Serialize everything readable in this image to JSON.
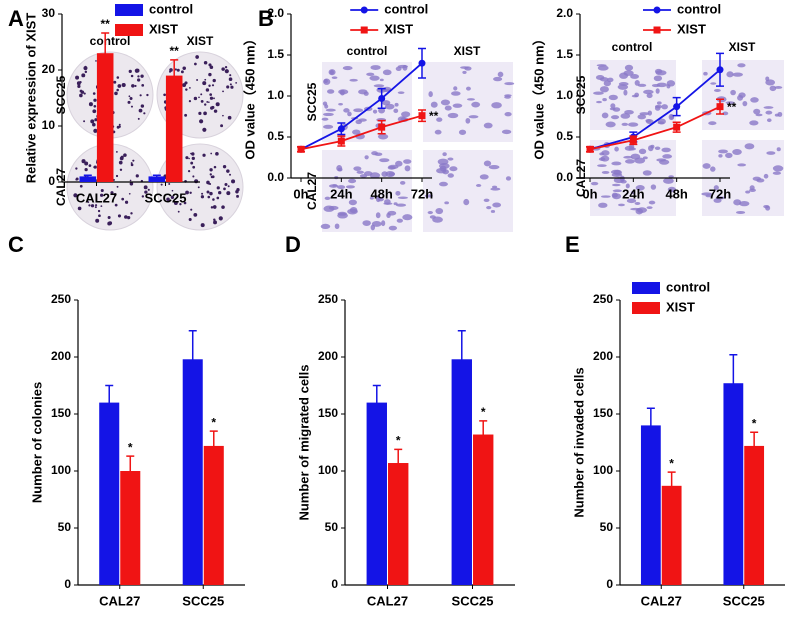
{
  "panel_labels": [
    "A",
    "B",
    "C",
    "D",
    "E"
  ],
  "image_grids": [
    {
      "columns": [
        "control",
        "XIST"
      ],
      "rows": [
        "SCC25",
        "CAL27"
      ]
    },
    {
      "columns": [
        "control",
        "XIST"
      ],
      "rows": [
        "SCC25",
        "CAL27"
      ]
    },
    {
      "columns": [
        "control",
        "XIST"
      ],
      "rows": [
        "SCC25",
        "CAL27"
      ]
    }
  ],
  "chart_data": [
    {
      "type": "bar",
      "ylabel": "Relative expression of XIST",
      "categories": [
        "CAL27",
        "SCC25"
      ],
      "ylim": [
        0,
        30
      ],
      "yticks": [
        0,
        10,
        20,
        30
      ],
      "legend": "upper right",
      "series": [
        {
          "name": "control",
          "color": "#1414e6",
          "values": [
            1,
            1
          ],
          "errors": [
            0.2,
            0.2
          ],
          "significance": [
            null,
            null
          ]
        },
        {
          "name": "XIST",
          "color": "#f01414",
          "values": [
            23,
            19
          ],
          "errors": [
            3.6,
            2.8
          ],
          "significance": [
            "**",
            "**"
          ]
        }
      ]
    },
    {
      "type": "line",
      "ylabel": "OD value（450 nm）",
      "categories": [
        "0h",
        "24h",
        "48h",
        "72h"
      ],
      "ylim": [
        0,
        2
      ],
      "yticks": [
        {
          "value": 0,
          "label": "0.0"
        },
        0.5,
        {
          "value": 1,
          "label": "1.0"
        },
        1.5,
        {
          "value": 2,
          "label": "2.0"
        }
      ],
      "legend": "upper center",
      "series": [
        {
          "name": "control",
          "color": "#1414e6",
          "values": [
            0.35,
            0.6,
            0.97,
            1.4
          ],
          "errors": [
            0.03,
            0.07,
            0.12,
            0.18
          ],
          "significance": [
            null,
            null,
            null,
            null
          ]
        },
        {
          "name": "XIST",
          "color": "#f01414",
          "values": [
            0.35,
            0.45,
            0.62,
            0.76
          ],
          "errors": [
            0.03,
            0.06,
            0.08,
            0.07
          ],
          "significance": [
            null,
            null,
            null,
            "**"
          ]
        }
      ]
    },
    {
      "type": "line",
      "ylabel": "OD value（450 nm）",
      "categories": [
        "0h",
        "24h",
        "48h",
        "72h"
      ],
      "ylim": [
        0,
        2
      ],
      "yticks": [
        {
          "value": 0,
          "label": "0.0"
        },
        0.5,
        {
          "value": 1,
          "label": "1.0"
        },
        1.5,
        {
          "value": 2,
          "label": "2.0"
        }
      ],
      "legend": "upper center",
      "series": [
        {
          "name": "control",
          "color": "#1414e6",
          "values": [
            0.35,
            0.5,
            0.87,
            1.32
          ],
          "errors": [
            0.03,
            0.06,
            0.11,
            0.2
          ],
          "significance": [
            null,
            null,
            null,
            null
          ]
        },
        {
          "name": "XIST",
          "color": "#f01414",
          "values": [
            0.35,
            0.46,
            0.62,
            0.87
          ],
          "errors": [
            0.03,
            0.05,
            0.06,
            0.09
          ],
          "significance": [
            null,
            null,
            null,
            "**"
          ]
        }
      ]
    },
    {
      "type": "bar",
      "ylabel": "Number of colonies",
      "categories": [
        "CAL27",
        "SCC25"
      ],
      "ylim": [
        0,
        250
      ],
      "yticks": [
        0,
        50,
        100,
        150,
        200,
        250
      ],
      "series": [
        {
          "name": "control",
          "color": "#1414e6",
          "values": [
            160,
            198
          ],
          "errors": [
            15,
            25
          ],
          "significance": [
            null,
            null
          ]
        },
        {
          "name": "XIST",
          "color": "#f01414",
          "values": [
            100,
            122
          ],
          "errors": [
            13,
            13
          ],
          "significance": [
            "*",
            "*"
          ]
        }
      ]
    },
    {
      "type": "bar",
      "ylabel": "Number of migrated cells",
      "categories": [
        "CAL27",
        "SCC25"
      ],
      "ylim": [
        0,
        250
      ],
      "yticks": [
        0,
        50,
        100,
        150,
        200,
        250
      ],
      "series": [
        {
          "name": "control",
          "color": "#1414e6",
          "values": [
            160,
            198
          ],
          "errors": [
            15,
            25
          ],
          "significance": [
            null,
            null
          ]
        },
        {
          "name": "XIST",
          "color": "#f01414",
          "values": [
            107,
            132
          ],
          "errors": [
            12,
            12
          ],
          "significance": [
            "*",
            "*"
          ]
        }
      ]
    },
    {
      "type": "bar",
      "ylabel": "Number of invaded cells",
      "categories": [
        "CAL27",
        "SCC25"
      ],
      "ylim": [
        0,
        250
      ],
      "yticks": [
        0,
        50,
        100,
        150,
        200,
        250
      ],
      "legend": "upper left",
      "series": [
        {
          "name": "control",
          "color": "#1414e6",
          "values": [
            140,
            177
          ],
          "errors": [
            15,
            25
          ],
          "significance": [
            null,
            null
          ]
        },
        {
          "name": "XIST",
          "color": "#f01414",
          "values": [
            87,
            122
          ],
          "errors": [
            12,
            12
          ],
          "significance": [
            "*",
            "*"
          ]
        }
      ]
    }
  ]
}
